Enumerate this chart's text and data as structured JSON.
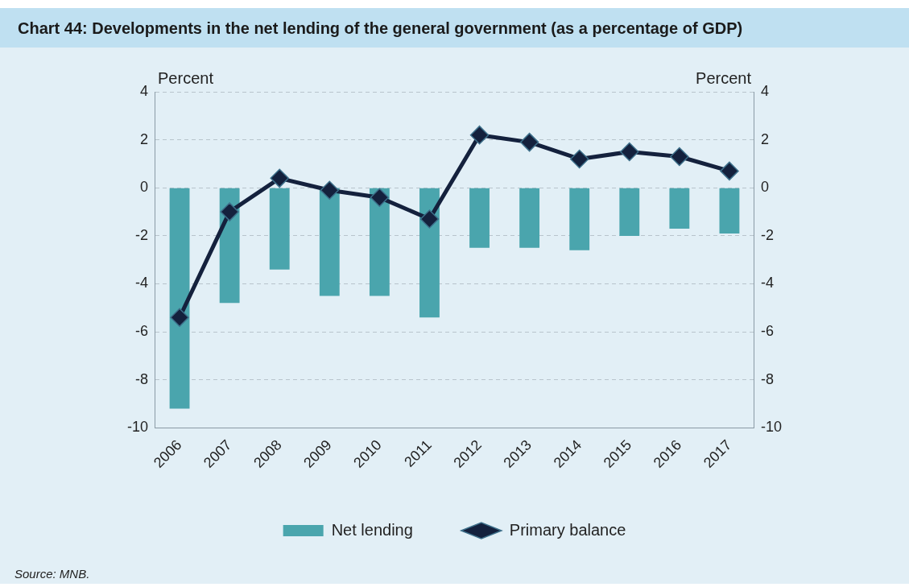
{
  "chart_data": {
    "type": "bar",
    "title": "Chart 44: Developments in the net lending of the general government (as a percentage of GDP)",
    "ylabel": "Percent",
    "y2label": "Percent",
    "categories": [
      "2006",
      "2007",
      "2008",
      "2009",
      "2010",
      "2011",
      "2012",
      "2013",
      "2014",
      "2015",
      "2016",
      "2017"
    ],
    "series": [
      {
        "name": "Net lending",
        "color": "#4aa5ad",
        "values": [
          -9.2,
          -4.8,
          -3.4,
          -4.5,
          -4.5,
          -5.4,
          -2.5,
          -2.5,
          -2.6,
          -2.0,
          -1.7,
          -1.9
        ]
      },
      {
        "name": "Primary balance",
        "type": "line",
        "color": "#14213d",
        "marker": "diamond",
        "line_style": "solid",
        "values": [
          -5.4,
          -1.0,
          0.4,
          -0.1,
          -0.4,
          -1.3,
          2.2,
          1.9,
          1.2,
          1.5,
          1.3,
          0.7
        ]
      }
    ],
    "ylim": [
      -10,
      4
    ],
    "yticks": [
      -10,
      -8,
      -6,
      -4,
      -2,
      0,
      2,
      4
    ],
    "y2lim": [
      -10,
      4
    ],
    "y2ticks": [
      -10,
      -8,
      -6,
      -4,
      -2,
      0,
      2,
      4
    ],
    "grid": "y",
    "legend": "bottom",
    "annotations": [
      "Source: MNB."
    ]
  }
}
